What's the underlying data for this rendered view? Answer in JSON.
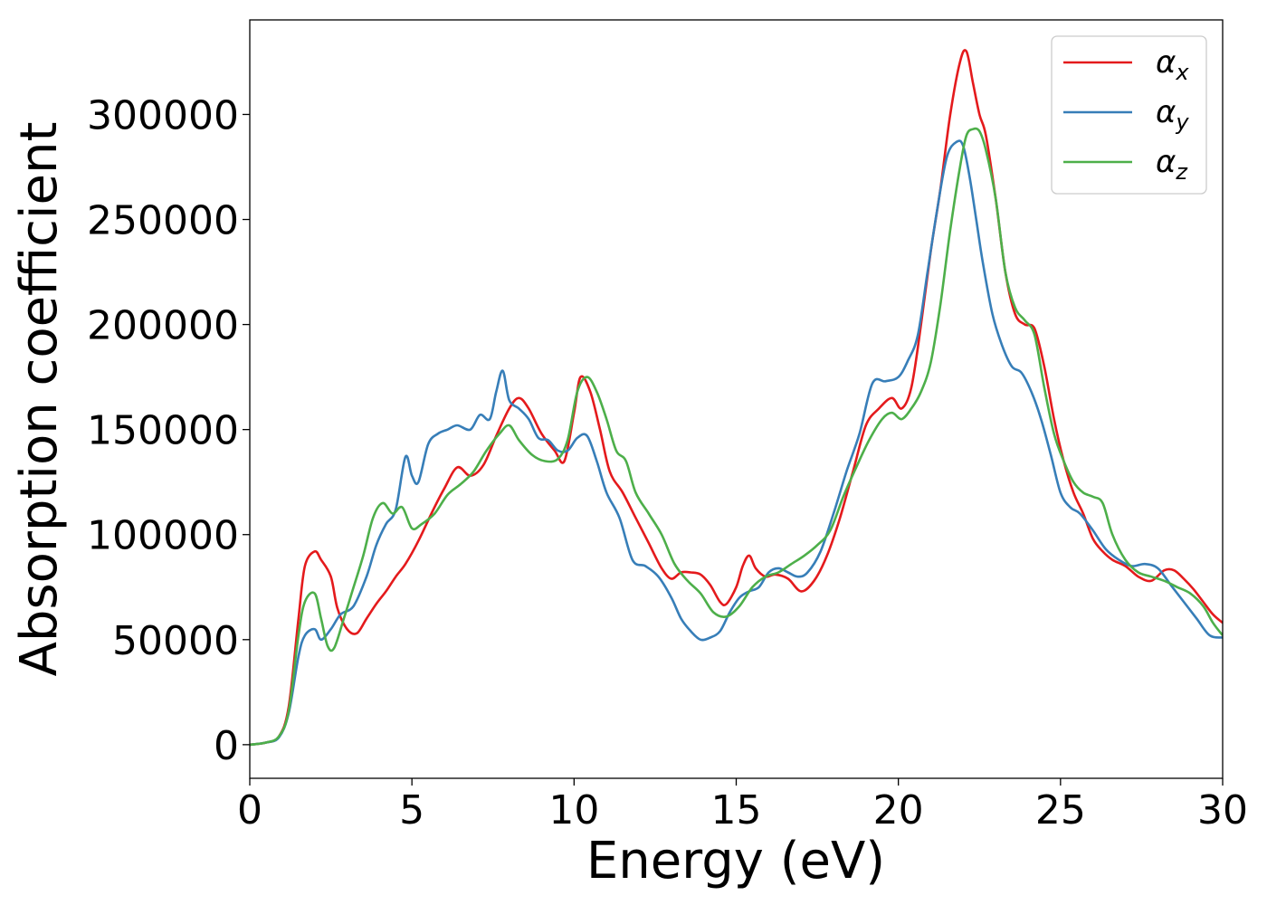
{
  "chart_data": {
    "type": "line",
    "title": "",
    "xlabel": "Energy (eV)",
    "ylabel": "Absorption coefficient",
    "xlim": [
      0,
      30
    ],
    "ylim": [
      -16000,
      345000
    ],
    "xticks": [
      0,
      5,
      10,
      15,
      20,
      25,
      30
    ],
    "yticks": [
      0,
      50000,
      100000,
      150000,
      200000,
      250000,
      300000
    ],
    "grid": false,
    "legend_position": "top-right",
    "series": [
      {
        "name": "α",
        "subscript": "x",
        "color": "#e41a1c",
        "x": [
          0,
          0.5,
          0.9,
          1.2,
          1.5,
          1.7,
          2.0,
          2.2,
          2.5,
          2.7,
          3.0,
          3.3,
          3.6,
          3.9,
          4.2,
          4.5,
          4.8,
          5.2,
          5.6,
          6.0,
          6.4,
          6.8,
          7.2,
          7.6,
          8.0,
          8.3,
          8.6,
          9.0,
          9.4,
          9.7,
          10.0,
          10.2,
          10.5,
          10.8,
          11.1,
          11.5,
          11.9,
          12.3,
          12.7,
          13.0,
          13.3,
          13.6,
          13.9,
          14.2,
          14.5,
          14.7,
          15.0,
          15.2,
          15.4,
          15.6,
          15.9,
          16.2,
          16.6,
          17.0,
          17.4,
          17.8,
          18.2,
          18.6,
          19.0,
          19.4,
          19.8,
          20.1,
          20.4,
          20.7,
          21.0,
          21.3,
          21.6,
          21.9,
          22.1,
          22.3,
          22.5,
          22.7,
          23.0,
          23.3,
          23.6,
          23.9,
          24.2,
          24.5,
          24.8,
          25.1,
          25.4,
          25.7,
          26.0,
          26.3,
          26.6,
          27.0,
          27.4,
          27.8,
          28.2,
          28.5,
          28.8,
          29.1,
          29.4,
          29.7,
          30.0
        ],
        "y": [
          0,
          1000,
          4000,
          18000,
          60000,
          85000,
          92000,
          88000,
          80000,
          65000,
          55000,
          53000,
          60000,
          67000,
          73000,
          80000,
          86000,
          97000,
          110000,
          122000,
          132000,
          128000,
          133000,
          147000,
          160000,
          165000,
          160000,
          148000,
          140000,
          135000,
          158000,
          175000,
          168000,
          150000,
          130000,
          120000,
          108000,
          96000,
          84000,
          79000,
          82000,
          82000,
          81000,
          76000,
          68000,
          67000,
          75000,
          85000,
          90000,
          84000,
          80000,
          81000,
          79000,
          73000,
          78000,
          90000,
          108000,
          130000,
          152000,
          160000,
          165000,
          160000,
          170000,
          200000,
          235000,
          265000,
          300000,
          325000,
          330000,
          315000,
          300000,
          290000,
          260000,
          225000,
          205000,
          200000,
          198000,
          180000,
          155000,
          135000,
          120000,
          110000,
          98000,
          92000,
          88000,
          85000,
          80000,
          78000,
          83000,
          83000,
          79000,
          74000,
          68000,
          62000,
          58000
        ]
      },
      {
        "name": "α",
        "subscript": "y",
        "color": "#377eb8",
        "x": [
          0,
          0.5,
          0.9,
          1.2,
          1.5,
          1.7,
          2.0,
          2.2,
          2.5,
          2.8,
          3.2,
          3.6,
          3.9,
          4.2,
          4.5,
          4.8,
          5.0,
          5.2,
          5.5,
          5.8,
          6.1,
          6.4,
          6.8,
          7.1,
          7.4,
          7.6,
          7.8,
          8.0,
          8.3,
          8.6,
          8.9,
          9.2,
          9.5,
          9.8,
          10.1,
          10.4,
          10.7,
          11.0,
          11.4,
          11.8,
          12.2,
          12.6,
          13.0,
          13.3,
          13.6,
          13.9,
          14.2,
          14.5,
          14.8,
          15.1,
          15.4,
          15.7,
          16.0,
          16.3,
          16.6,
          16.9,
          17.2,
          17.6,
          18.0,
          18.4,
          18.8,
          19.2,
          19.6,
          20.0,
          20.3,
          20.6,
          20.9,
          21.2,
          21.5,
          21.8,
          22.0,
          22.2,
          22.4,
          22.6,
          22.9,
          23.2,
          23.5,
          23.8,
          24.1,
          24.4,
          24.7,
          25.0,
          25.3,
          25.6,
          26.0,
          26.4,
          26.8,
          27.2,
          27.6,
          28.0,
          28.4,
          28.8,
          29.2,
          29.6,
          30.0
        ],
        "y": [
          0,
          1000,
          3500,
          15000,
          42000,
          52000,
          55000,
          50000,
          55000,
          62000,
          66000,
          80000,
          95000,
          105000,
          112000,
          137000,
          128000,
          125000,
          143000,
          148000,
          150000,
          152000,
          150000,
          157000,
          155000,
          168000,
          178000,
          164000,
          160000,
          155000,
          146000,
          145000,
          140000,
          140000,
          146000,
          147000,
          135000,
          120000,
          108000,
          88000,
          85000,
          80000,
          70000,
          60000,
          54000,
          50000,
          51000,
          54000,
          63000,
          70000,
          73000,
          75000,
          82000,
          84000,
          82000,
          80000,
          82000,
          92000,
          110000,
          130000,
          148000,
          172000,
          173000,
          175000,
          183000,
          195000,
          225000,
          255000,
          280000,
          287000,
          285000,
          270000,
          250000,
          230000,
          205000,
          190000,
          180000,
          177000,
          168000,
          155000,
          138000,
          120000,
          113000,
          110000,
          102000,
          93000,
          88000,
          85000,
          86000,
          84000,
          76000,
          68000,
          60000,
          52000,
          51000
        ]
      },
      {
        "name": "α",
        "subscript": "z",
        "color": "#4daf4a",
        "x": [
          0,
          0.5,
          0.9,
          1.2,
          1.5,
          1.7,
          2.0,
          2.2,
          2.4,
          2.6,
          2.9,
          3.2,
          3.5,
          3.8,
          4.1,
          4.4,
          4.7,
          5.0,
          5.3,
          5.7,
          6.1,
          6.5,
          6.9,
          7.3,
          7.7,
          8.0,
          8.3,
          8.7,
          9.1,
          9.5,
          9.8,
          10.1,
          10.4,
          10.7,
          11.0,
          11.3,
          11.6,
          11.9,
          12.3,
          12.7,
          13.1,
          13.5,
          13.9,
          14.3,
          14.7,
          15.1,
          15.5,
          15.9,
          16.3,
          16.7,
          17.1,
          17.5,
          17.9,
          18.3,
          18.7,
          19.1,
          19.5,
          19.8,
          20.1,
          20.4,
          20.7,
          21.0,
          21.3,
          21.6,
          21.9,
          22.1,
          22.3,
          22.5,
          22.7,
          23.0,
          23.3,
          23.6,
          23.9,
          24.2,
          24.5,
          24.8,
          25.1,
          25.4,
          25.7,
          26.0,
          26.3,
          26.6,
          27.0,
          27.4,
          27.8,
          28.2,
          28.6,
          29.0,
          29.4,
          29.7,
          30.0
        ],
        "y": [
          0,
          1000,
          4000,
          16000,
          52000,
          68000,
          72000,
          60000,
          47000,
          46000,
          60000,
          75000,
          90000,
          108000,
          115000,
          110000,
          113000,
          103000,
          105000,
          110000,
          119000,
          124000,
          130000,
          140000,
          148000,
          152000,
          145000,
          138000,
          135000,
          136000,
          145000,
          168000,
          175000,
          168000,
          155000,
          140000,
          135000,
          120000,
          110000,
          100000,
          86000,
          78000,
          72000,
          63000,
          61000,
          66000,
          75000,
          80000,
          82000,
          86000,
          90000,
          95000,
          102000,
          118000,
          132000,
          145000,
          155000,
          158000,
          155000,
          160000,
          168000,
          182000,
          210000,
          245000,
          275000,
          290000,
          293000,
          292000,
          283000,
          260000,
          225000,
          208000,
          202000,
          195000,
          170000,
          148000,
          135000,
          125000,
          120000,
          118000,
          115000,
          100000,
          88000,
          82000,
          80000,
          78000,
          75000,
          72000,
          66000,
          58000,
          52000
        ]
      }
    ]
  }
}
